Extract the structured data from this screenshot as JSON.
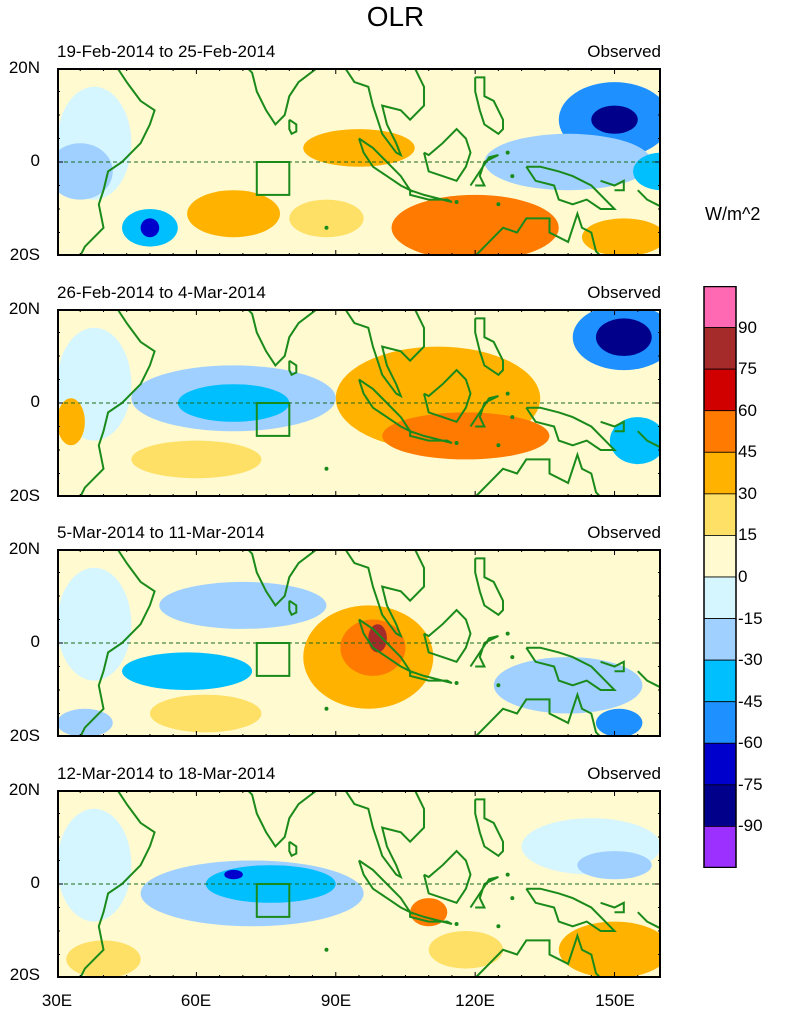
{
  "title": "OLR",
  "units": "W/m^2",
  "chart_data": {
    "type": "heatmap",
    "variable": "OLR",
    "units": "W/m^2",
    "x_range": [
      30,
      160
    ],
    "y_range": [
      -20,
      20
    ],
    "x_ticks": [
      "30E",
      "60E",
      "90E",
      "120E",
      "150E"
    ],
    "y_ticks": [
      "20N",
      "0",
      "20S"
    ],
    "colorbar": {
      "colors": [
        "#9b30ff",
        "#00008b",
        "#0000cd",
        "#1e90ff",
        "#00bfff",
        "#9fd0ff",
        "#d5f5ff",
        "#fffad0",
        "#ffe066",
        "#ffb300",
        "#ff7a00",
        "#d10000",
        "#a52a2a",
        "#ff69b4"
      ],
      "labels": [
        "-90",
        "-75",
        "-60",
        "-45",
        "-30",
        "-15",
        "0",
        "15",
        "30",
        "45",
        "60",
        "75",
        "90"
      ]
    },
    "panels": [
      {
        "left_title": "19-Feb-2014 to 25-Feb-2014",
        "right_title": "Observed",
        "anomalies": [
          {
            "lon": 150,
            "lat": 9,
            "rx": 12,
            "ry": 8,
            "value": -60
          },
          {
            "lon": 150,
            "lat": 9,
            "rx": 5,
            "ry": 3,
            "value": -90
          },
          {
            "lon": 140,
            "lat": 0,
            "rx": 18,
            "ry": 6,
            "value": -30
          },
          {
            "lon": 160,
            "lat": -2,
            "rx": 6,
            "ry": 4,
            "value": -45
          },
          {
            "lon": 35,
            "lat": -2,
            "rx": 7,
            "ry": 6,
            "value": -30
          },
          {
            "lon": 50,
            "lat": -14,
            "rx": 6,
            "ry": 4,
            "value": -45
          },
          {
            "lon": 50,
            "lat": -14,
            "rx": 2,
            "ry": 2,
            "value": -75
          },
          {
            "lon": 120,
            "lat": -14,
            "rx": 18,
            "ry": 7,
            "value": 45
          },
          {
            "lon": 68,
            "lat": -11,
            "rx": 10,
            "ry": 5,
            "value": 30
          },
          {
            "lon": 95,
            "lat": 3,
            "rx": 12,
            "ry": 4,
            "value": 30
          },
          {
            "lon": 152,
            "lat": -16,
            "rx": 9,
            "ry": 4,
            "value": 30
          },
          {
            "lon": 88,
            "lat": -12,
            "rx": 8,
            "ry": 4,
            "value": 15
          }
        ]
      },
      {
        "left_title": "26-Feb-2014 to 4-Mar-2014",
        "right_title": "Observed",
        "anomalies": [
          {
            "lon": 152,
            "lat": 14,
            "rx": 11,
            "ry": 7,
            "value": -60
          },
          {
            "lon": 152,
            "lat": 14,
            "rx": 6,
            "ry": 4,
            "value": -90
          },
          {
            "lon": 68,
            "lat": 1,
            "rx": 22,
            "ry": 7,
            "value": -30
          },
          {
            "lon": 68,
            "lat": 0,
            "rx": 12,
            "ry": 4,
            "value": -45
          },
          {
            "lon": 155,
            "lat": -8,
            "rx": 6,
            "ry": 5,
            "value": -45
          },
          {
            "lon": 112,
            "lat": 1,
            "rx": 22,
            "ry": 11,
            "value": 30
          },
          {
            "lon": 118,
            "lat": -7,
            "rx": 18,
            "ry": 5,
            "value": 45
          },
          {
            "lon": 33,
            "lat": -4,
            "rx": 3,
            "ry": 5,
            "value": 30
          },
          {
            "lon": 60,
            "lat": -12,
            "rx": 14,
            "ry": 4,
            "value": 15
          }
        ]
      },
      {
        "left_title": "5-Mar-2014 to 11-Mar-2014",
        "right_title": "Observed",
        "anomalies": [
          {
            "lon": 70,
            "lat": 8,
            "rx": 18,
            "ry": 5,
            "value": -30
          },
          {
            "lon": 58,
            "lat": -6,
            "rx": 14,
            "ry": 4,
            "value": -45
          },
          {
            "lon": 140,
            "lat": -9,
            "rx": 16,
            "ry": 6,
            "value": -30
          },
          {
            "lon": 151,
            "lat": -17,
            "rx": 5,
            "ry": 3,
            "value": -60
          },
          {
            "lon": 36,
            "lat": -17,
            "rx": 6,
            "ry": 3,
            "value": -30
          },
          {
            "lon": 97,
            "lat": -3,
            "rx": 14,
            "ry": 11,
            "value": 30
          },
          {
            "lon": 98,
            "lat": -1,
            "rx": 7,
            "ry": 6,
            "value": 45
          },
          {
            "lon": 99,
            "lat": 1,
            "rx": 2,
            "ry": 3,
            "value": 75
          },
          {
            "lon": 62,
            "lat": -15,
            "rx": 12,
            "ry": 4,
            "value": 15
          }
        ]
      },
      {
        "left_title": "12-Mar-2014 to 18-Mar-2014",
        "right_title": "Observed",
        "anomalies": [
          {
            "lon": 72,
            "lat": -2,
            "rx": 24,
            "ry": 7,
            "value": -30
          },
          {
            "lon": 76,
            "lat": 0,
            "rx": 14,
            "ry": 4,
            "value": -45
          },
          {
            "lon": 68,
            "lat": 2,
            "rx": 2,
            "ry": 1,
            "value": -75
          },
          {
            "lon": 145,
            "lat": 8,
            "rx": 15,
            "ry": 6,
            "value": -15
          },
          {
            "lon": 150,
            "lat": 4,
            "rx": 8,
            "ry": 3,
            "value": -30
          },
          {
            "lon": 110,
            "lat": -6,
            "rx": 4,
            "ry": 3,
            "value": 45
          },
          {
            "lon": 150,
            "lat": -14,
            "rx": 12,
            "ry": 6,
            "value": 30
          },
          {
            "lon": 118,
            "lat": -14,
            "rx": 8,
            "ry": 4,
            "value": 15
          },
          {
            "lon": 40,
            "lat": -16,
            "rx": 8,
            "ry": 4,
            "value": 15
          }
        ]
      }
    ],
    "region_box": {
      "lon_min": 73,
      "lon_max": 80,
      "lat_min": -7,
      "lat_max": 0
    }
  }
}
